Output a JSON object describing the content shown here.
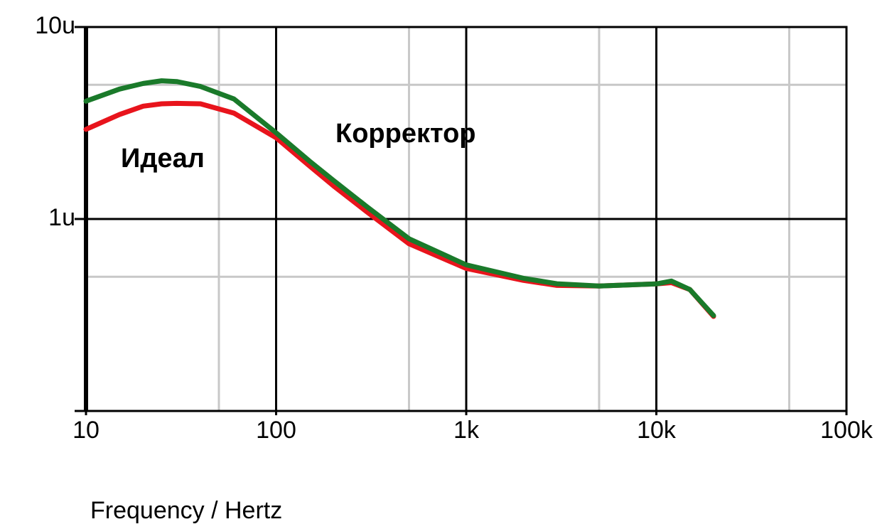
{
  "chart_data": {
    "type": "line",
    "xlabel": "Frequency / Hertz",
    "x": [
      10,
      15,
      20,
      25,
      30,
      40,
      60,
      100,
      150,
      200,
      300,
      500,
      1000,
      2000,
      3000,
      5000,
      10000,
      12000,
      15000,
      20000
    ],
    "series": [
      {
        "name": "Идеал",
        "color": "#e8141c",
        "values": [
          2.93,
          3.5,
          3.87,
          3.98,
          4.0,
          3.98,
          3.56,
          2.65,
          1.89,
          1.49,
          1.09,
          0.743,
          0.553,
          0.479,
          0.451,
          0.448,
          0.459,
          0.466,
          0.429,
          0.311
        ]
      },
      {
        "name": "Корректор",
        "color": "#1a7a2a",
        "values": [
          4.11,
          4.75,
          5.08,
          5.25,
          5.2,
          4.9,
          4.22,
          2.81,
          2.0,
          1.59,
          1.16,
          0.789,
          0.577,
          0.491,
          0.46,
          0.448,
          0.459,
          0.475,
          0.429,
          0.314
        ]
      }
    ],
    "xscale": "log",
    "yscale": "log",
    "xlim": [
      10,
      100000
    ],
    "ylim": [
      0.1,
      10
    ],
    "xticks": [
      10,
      100,
      {
        "value": 1000,
        "label": "1k"
      },
      {
        "value": 10000,
        "label": "10k"
      },
      {
        "value": 100000,
        "label": "100k"
      }
    ],
    "yticks": [
      {
        "value": 1,
        "label": "1u"
      },
      {
        "value": 10,
        "label": "10u"
      }
    ],
    "minor_xticks": [
      50,
      500,
      5000,
      50000
    ],
    "minor_yticks": [
      0.5,
      5
    ],
    "grid": true
  }
}
